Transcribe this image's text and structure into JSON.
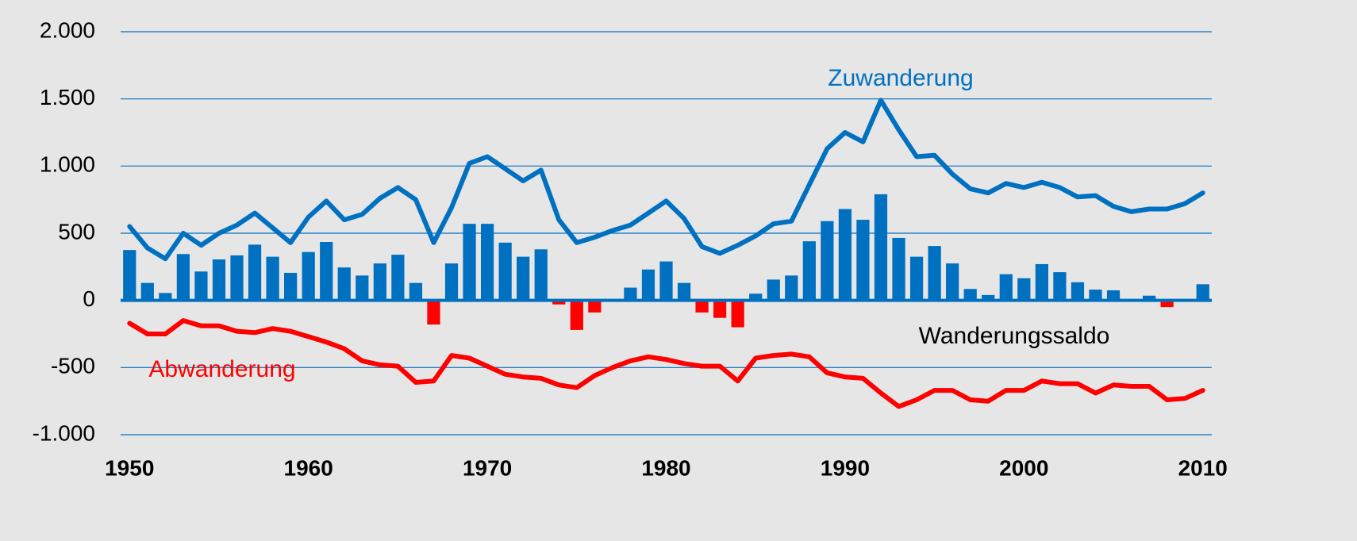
{
  "chart_data": {
    "type": "bar",
    "x": [
      1950,
      1951,
      1952,
      1953,
      1954,
      1955,
      1956,
      1957,
      1958,
      1959,
      1960,
      1961,
      1962,
      1963,
      1964,
      1965,
      1966,
      1967,
      1968,
      1969,
      1970,
      1971,
      1972,
      1973,
      1974,
      1975,
      1976,
      1977,
      1978,
      1979,
      1980,
      1981,
      1982,
      1983,
      1984,
      1985,
      1986,
      1987,
      1988,
      1989,
      1990,
      1991,
      1992,
      1993,
      1994,
      1995,
      1996,
      1997,
      1998,
      1999,
      2000,
      2001,
      2002,
      2003,
      2004,
      2005,
      2006,
      2007,
      2008,
      2009,
      2010
    ],
    "series": [
      {
        "name": "Zuwanderung",
        "type": "line",
        "color": "#0070c0",
        "values": [
          550,
          390,
          310,
          500,
          410,
          500,
          560,
          650,
          540,
          430,
          620,
          740,
          600,
          640,
          760,
          840,
          750,
          430,
          690,
          1020,
          1070,
          980,
          890,
          970,
          600,
          430,
          470,
          520,
          560,
          650,
          740,
          610,
          400,
          350,
          410,
          480,
          570,
          590,
          860,
          1130,
          1250,
          1180,
          1490,
          1270,
          1070,
          1080,
          940,
          830,
          800,
          870,
          840,
          880,
          840,
          770,
          780,
          700,
          660,
          680,
          680,
          720,
          800
        ]
      },
      {
        "name": "Abwanderung",
        "type": "line",
        "color": "#ff0000",
        "values": [
          -170,
          -250,
          -250,
          -150,
          -190,
          -190,
          -230,
          -240,
          -210,
          -230,
          -270,
          -310,
          -360,
          -450,
          -480,
          -490,
          -610,
          -600,
          -410,
          -430,
          -490,
          -550,
          -570,
          -580,
          -630,
          -650,
          -560,
          -500,
          -450,
          -420,
          -440,
          -470,
          -490,
          -490,
          -600,
          -430,
          -410,
          -400,
          -420,
          -540,
          -570,
          -580,
          -690,
          -790,
          -740,
          -670,
          -670,
          -740,
          -750,
          -670,
          -670,
          -600,
          -620,
          -620,
          -690,
          -630,
          -640,
          -640,
          -740,
          -730,
          -670
        ]
      },
      {
        "name": "Wanderungssaldo",
        "type": "bar",
        "color": "#0070c0",
        "negative_color": "#ff0000",
        "values": [
          375,
          130,
          55,
          345,
          215,
          305,
          335,
          415,
          325,
          205,
          360,
          435,
          245,
          185,
          275,
          340,
          130,
          -180,
          275,
          570,
          570,
          430,
          325,
          380,
          -30,
          -220,
          -90,
          5,
          95,
          230,
          290,
          130,
          -90,
          -130,
          -200,
          50,
          155,
          185,
          440,
          590,
          680,
          600,
          790,
          465,
          325,
          405,
          275,
          85,
          40,
          195,
          165,
          270,
          210,
          135,
          80,
          75,
          5,
          35,
          -50,
          5,
          120
        ]
      }
    ],
    "xlim": [
      1949.5,
      2010.5
    ],
    "xticks": [
      1950,
      1960,
      1970,
      1980,
      1990,
      2000,
      2010
    ],
    "ylim": [
      -1000,
      2000
    ],
    "yticks": [
      {
        "value": -1000,
        "label": "-1.000"
      },
      -500,
      0,
      500,
      {
        "value": 1000,
        "label": "1.000"
      },
      {
        "value": 1500,
        "label": "1.500"
      },
      {
        "value": 2000,
        "label": "2.000"
      }
    ],
    "grid": true,
    "grid_color": "#0070c0"
  }
}
